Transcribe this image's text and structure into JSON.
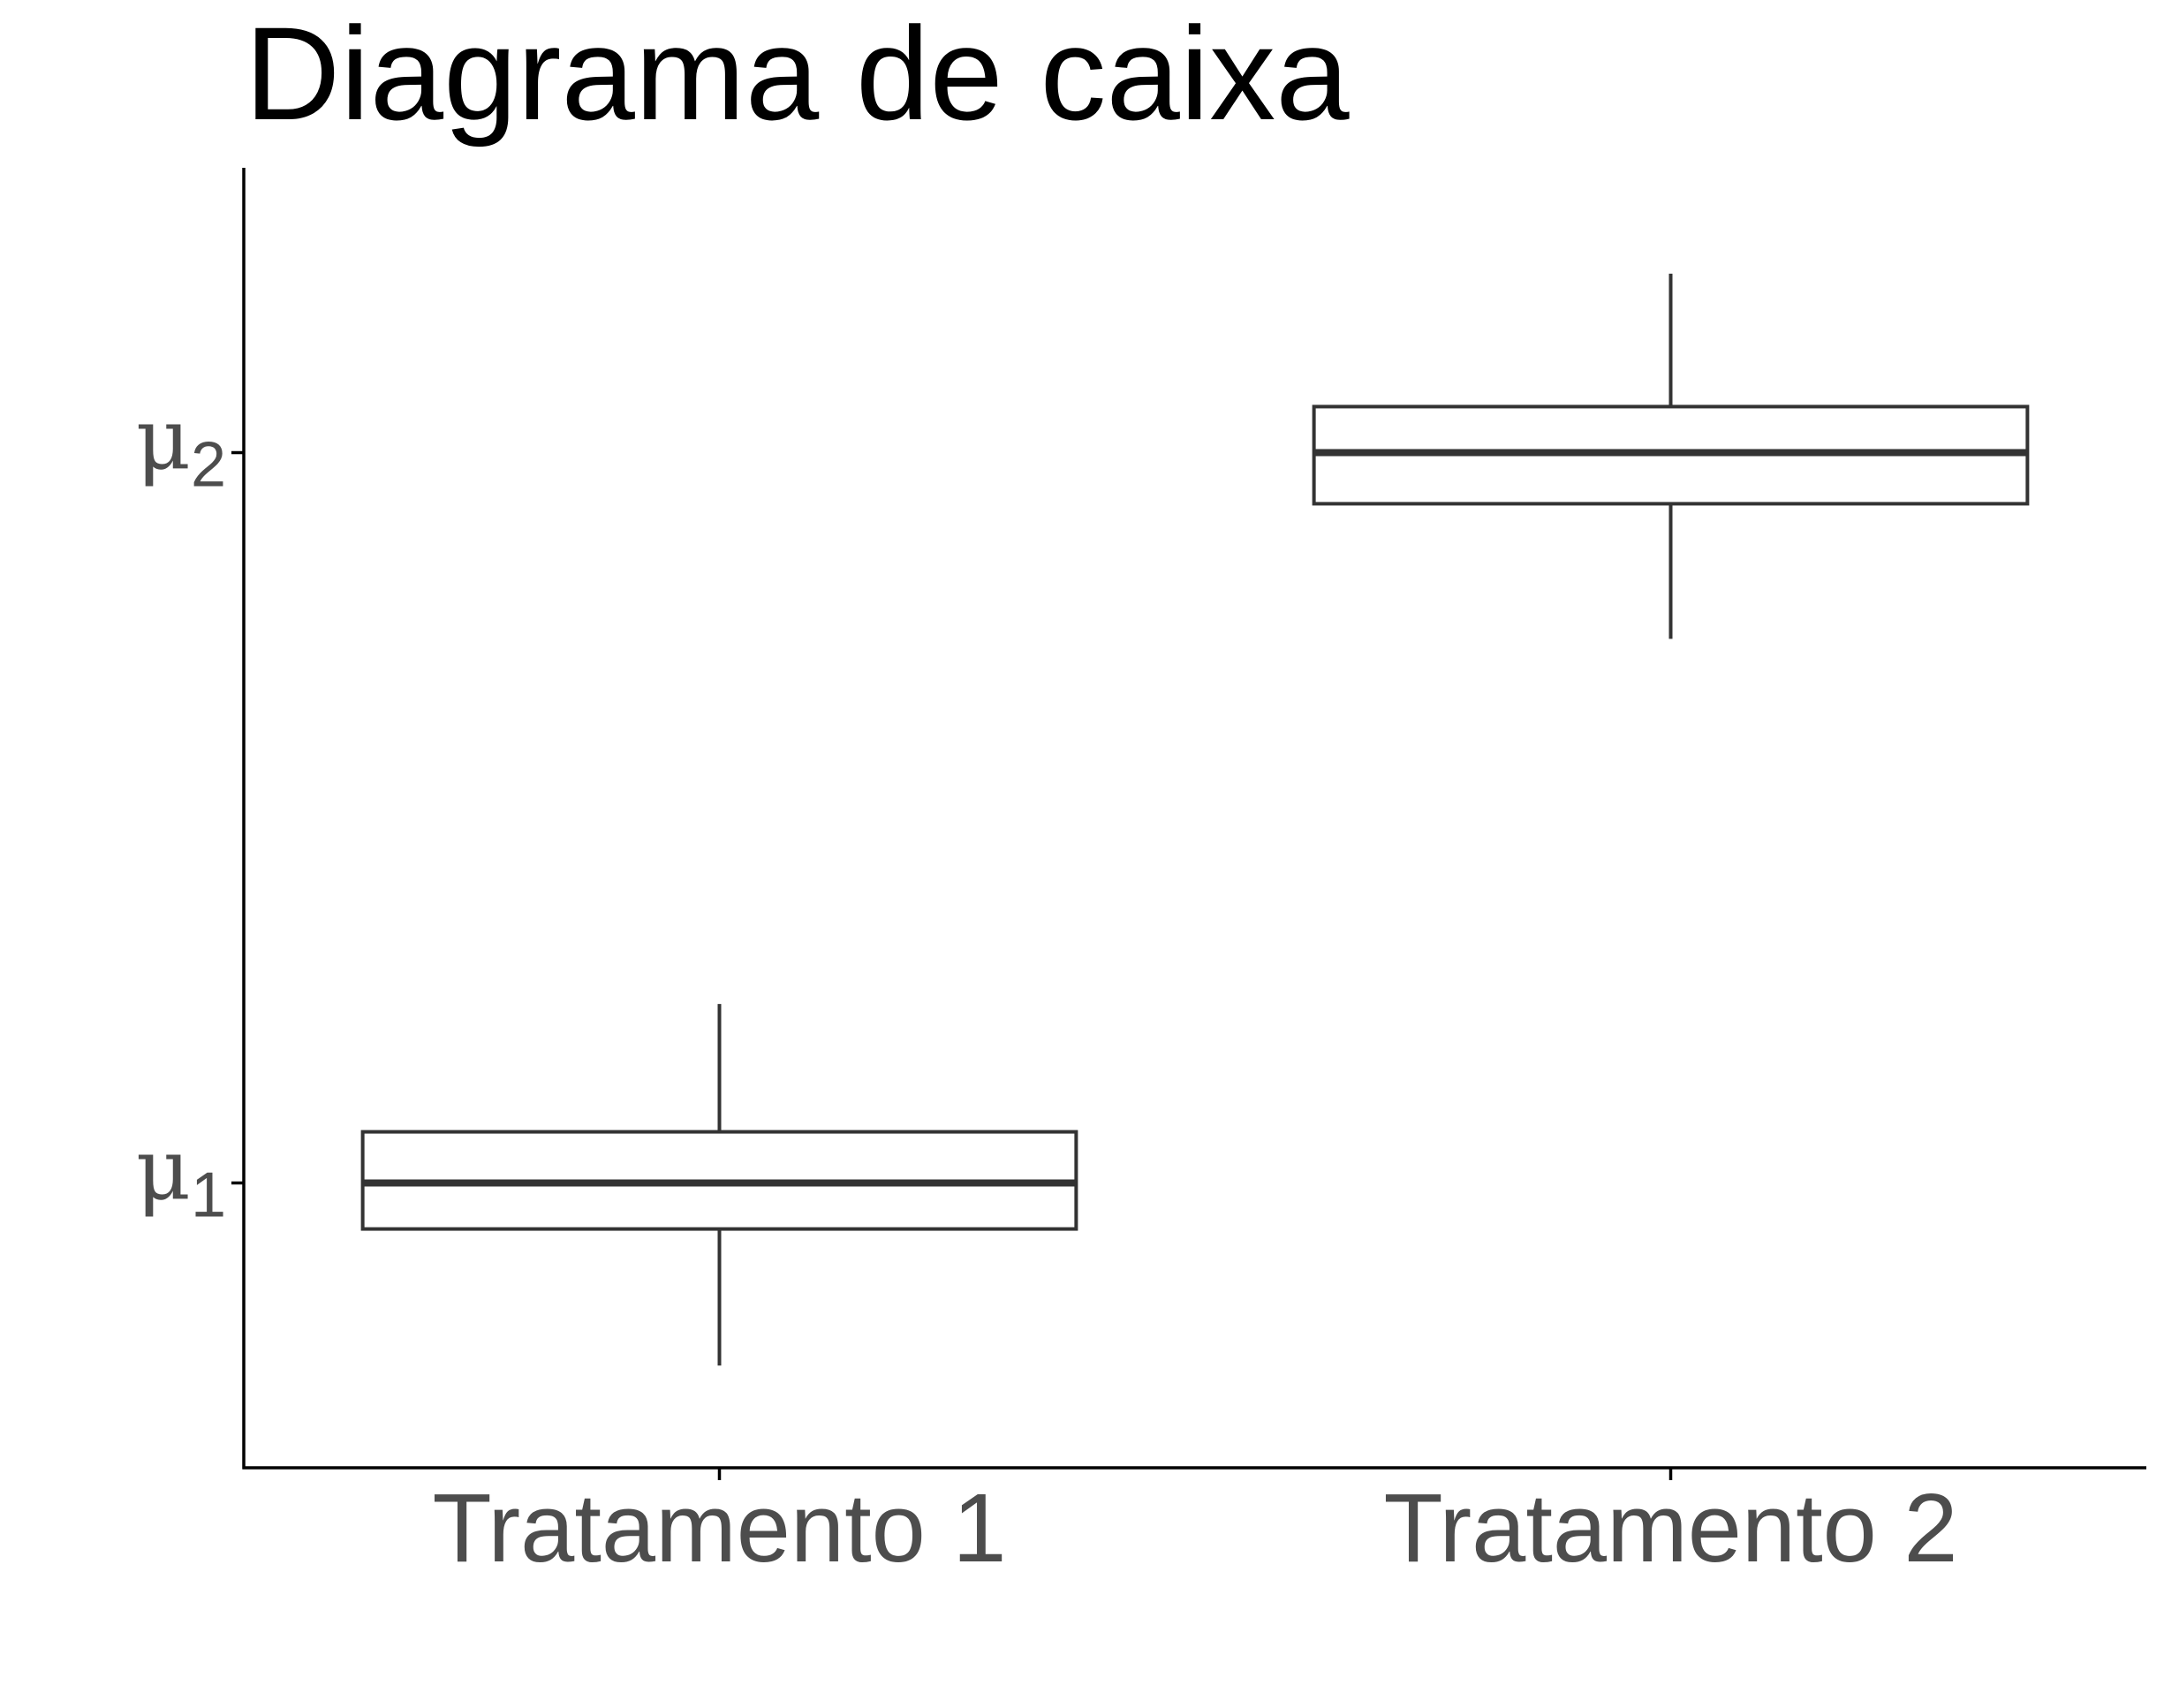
{
  "chart_data": {
    "type": "box",
    "title": "Diagrama de caixa",
    "xlabel": "",
    "ylabel": "",
    "grid": false,
    "legend": "none",
    "categories": [
      "Tratamento 1",
      "Tratamento 2"
    ],
    "y_ticks": [
      {
        "symbol": "μ",
        "subscript": "1",
        "value": 1
      },
      {
        "symbol": "μ",
        "subscript": "2",
        "value": 2
      }
    ],
    "ylim": [
      0.61,
      2.39
    ],
    "boxes": [
      {
        "category": "Tratamento 1",
        "whisker_low": 0.75,
        "q1": 0.937,
        "median": 1.0,
        "q3": 1.07,
        "whisker_high": 1.245
      },
      {
        "category": "Tratamento 2",
        "whisker_low": 1.745,
        "q1": 1.93,
        "median": 2.0,
        "q3": 2.063,
        "whisker_high": 2.245
      }
    ],
    "colors": {
      "box_stroke": "#333333",
      "box_fill": "#ffffff",
      "axis": "#000000",
      "tick_label": "#4d4d4d",
      "title": "#000000"
    }
  }
}
